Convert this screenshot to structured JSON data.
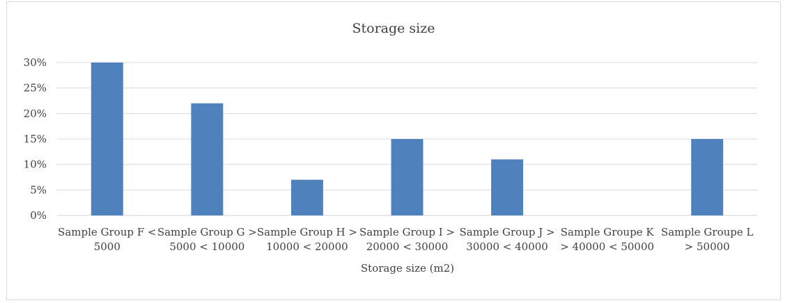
{
  "chart_data": {
    "type": "bar",
    "title": "Storage size",
    "xlabel": "Storage size (m2)",
    "ylabel": "",
    "ylim": [
      0,
      0.3
    ],
    "yticks": [
      "0%",
      "5%",
      "10%",
      "15%",
      "20%",
      "25%",
      "30%"
    ],
    "grid": true,
    "legend": "none",
    "bar_color": "#4f81bd",
    "categories": [
      [
        "Sample Group F <",
        "5000"
      ],
      [
        "Sample Group G >",
        "5000 < 10000"
      ],
      [
        "Sample Group H >",
        "10000 < 20000"
      ],
      [
        "Sample Group I >",
        "20000 < 30000"
      ],
      [
        "Sample Group J >",
        "30000 < 40000"
      ],
      [
        "Sample Groupe K",
        "> 40000 < 50000"
      ],
      [
        "Sample Groupe L",
        "> 50000"
      ]
    ],
    "values": [
      0.3,
      0.22,
      0.07,
      0.15,
      0.11,
      0.0,
      0.15
    ]
  }
}
